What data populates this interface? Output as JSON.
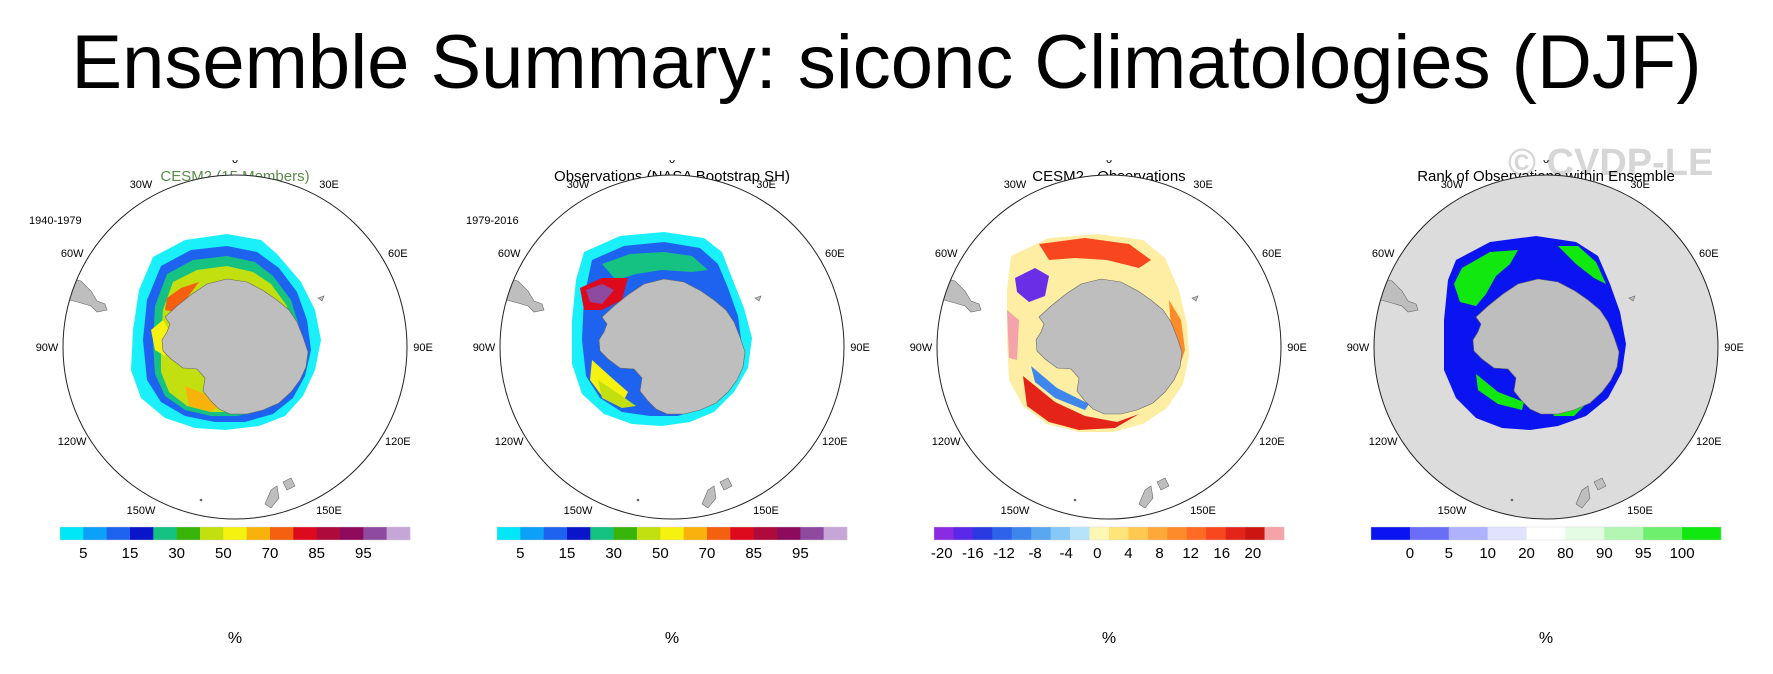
{
  "title": "Ensemble Summary: siconc Climatologies (DJF)",
  "watermark": "© CVDP-LE",
  "lon_labels": [
    "0",
    "30E",
    "60E",
    "90E",
    "120E",
    "150E",
    "180",
    "150W",
    "120W",
    "90W",
    "60W",
    "30W"
  ],
  "panels": [
    {
      "title": "CESM2 (15 Members)",
      "period": "1940-1979",
      "unit": "%",
      "tick_labels": [
        "5",
        "15",
        "30",
        "50",
        "70",
        "85",
        "95"
      ],
      "colors": [
        "#00e8f8",
        "#0ca0f6",
        "#1e62f0",
        "#0a14c8",
        "#16c282",
        "#39b408",
        "#c2e010",
        "#f6f210",
        "#f9b20c",
        "#f55f10",
        "#dc0a1c",
        "#ae0a3c",
        "#8e0a5c",
        "#8e4a9e",
        "#c6a6d6"
      ]
    },
    {
      "title": "Observations (NASA Bootstrap SH)",
      "period": "1979-2016",
      "unit": "%",
      "tick_labels": [
        "5",
        "15",
        "30",
        "50",
        "70",
        "85",
        "95"
      ],
      "colors": [
        "#00e8f8",
        "#0ca0f6",
        "#1e62f0",
        "#0a14c8",
        "#16c282",
        "#39b408",
        "#c2e010",
        "#f6f210",
        "#f9b20c",
        "#f55f10",
        "#dc0a1c",
        "#ae0a3c",
        "#8e0a5c",
        "#8e4a9e",
        "#c6a6d6"
      ]
    },
    {
      "title": "CESM2 - Observations",
      "period": "",
      "unit": "%",
      "tick_labels": [
        "-20",
        "-16",
        "-12",
        "-8",
        "-4",
        "0",
        "4",
        "8",
        "12",
        "16",
        "20"
      ],
      "colors": [
        "#8a2be2",
        "#5a28e6",
        "#2a3ae0",
        "#2e62e8",
        "#3e86ec",
        "#5aa6f0",
        "#86c8f6",
        "#b6e2fa",
        "#fff8b4",
        "#ffe47a",
        "#ffc850",
        "#ffa83a",
        "#ff8a2a",
        "#ff6a24",
        "#f8461e",
        "#e42418",
        "#cc1410",
        "#f4a4a8"
      ]
    },
    {
      "title": "Rank of Observations within Ensemble",
      "period": "",
      "unit": "%",
      "tick_labels": [
        "0",
        "5",
        "10",
        "20",
        "80",
        "90",
        "95",
        "100"
      ],
      "colors": [
        "#0a14f0",
        "#6a6ef6",
        "#aeb2fa",
        "#e0e2fe",
        "#ffffff",
        "#e4fce4",
        "#b2f6b2",
        "#6ef06e",
        "#10e810"
      ]
    }
  ]
}
